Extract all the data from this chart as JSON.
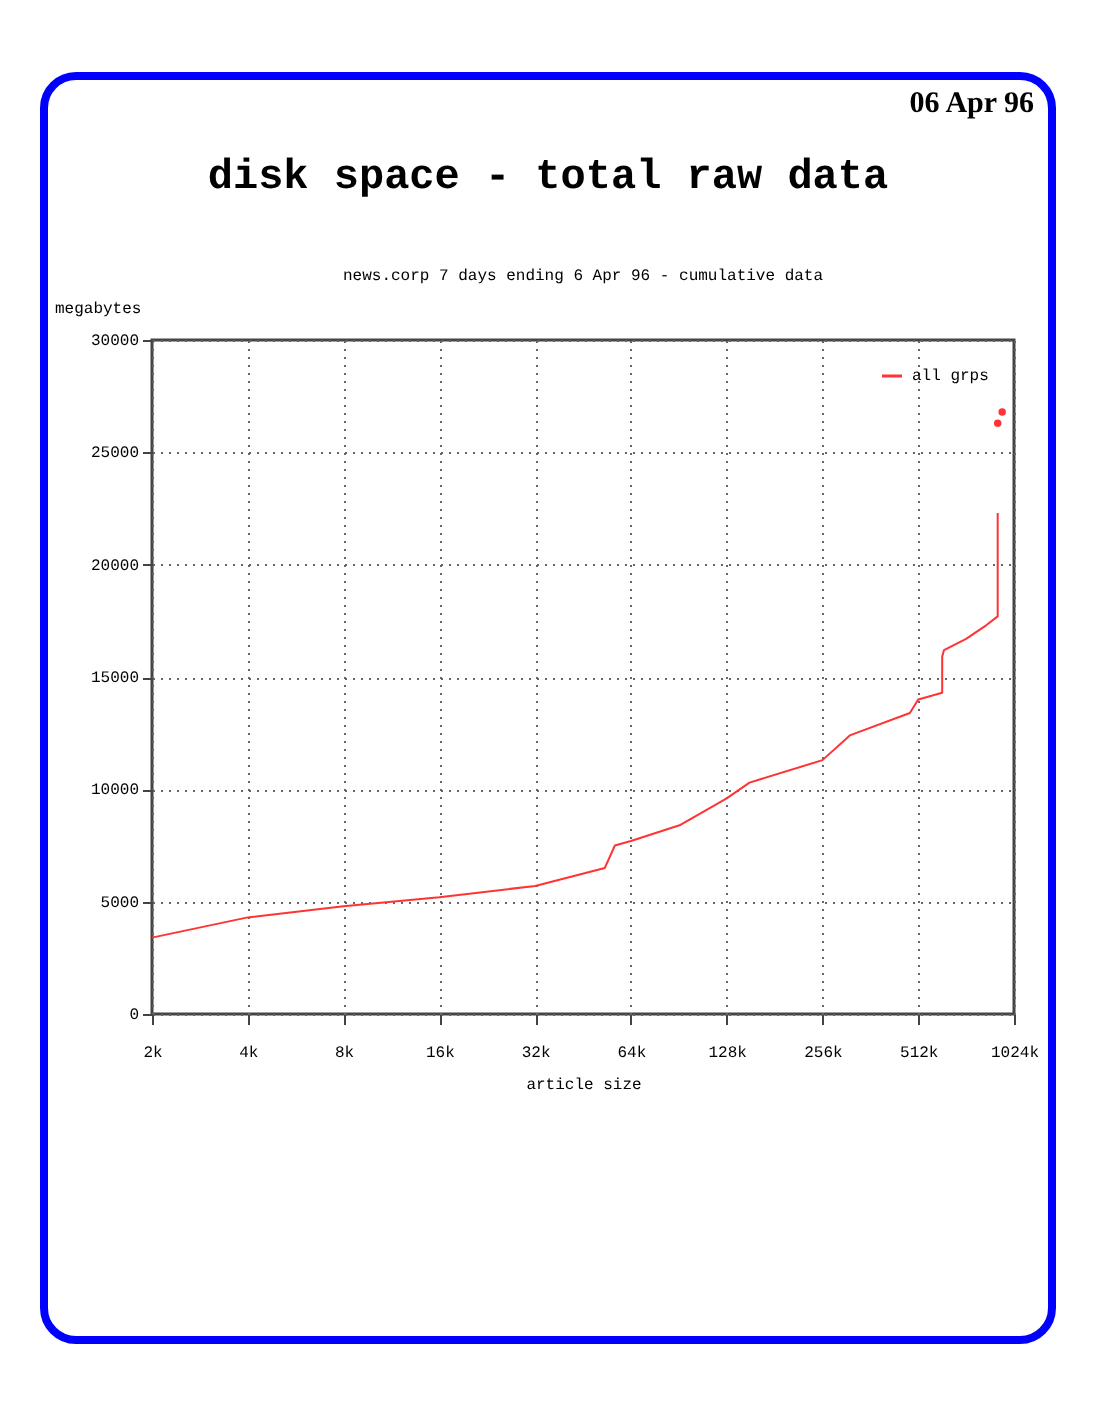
{
  "chart_data": {
    "type": "line",
    "title": "disk space - total raw data",
    "subtitle": "news.corp 7 days ending 6 Apr 96 - cumulative data",
    "xlabel": "article size",
    "ylabel": "megabytes",
    "annotations": [
      "06 Apr 96"
    ],
    "log": "x",
    "grid": true,
    "legend": "top right",
    "line_style": "solid",
    "xlim": [
      2,
      1024
    ],
    "xticks": [
      {
        "value": 2,
        "label": "2k"
      },
      {
        "value": 4,
        "label": "4k"
      },
      {
        "value": 8,
        "label": "8k"
      },
      {
        "value": 16,
        "label": "16k"
      },
      {
        "value": 32,
        "label": "32k"
      },
      {
        "value": 64,
        "label": "64k"
      },
      {
        "value": 128,
        "label": "128k"
      },
      {
        "value": 256,
        "label": "256k"
      },
      {
        "value": 512,
        "label": "512k"
      },
      {
        "value": 1024,
        "label": "1024k"
      }
    ],
    "ylim": [
      0,
      30000
    ],
    "yticks": [
      0,
      5000,
      10000,
      15000,
      20000,
      25000,
      30000
    ],
    "series": [
      {
        "name": "all grps",
        "color": "#ff3333",
        "x": [
          2,
          4,
          8,
          16,
          32,
          53,
          57,
          64,
          91,
          128,
          151,
          256,
          312,
          482,
          512,
          609,
          609,
          617,
          724,
          837,
          910,
          910,
          910
        ],
        "values": [
          3400,
          4300,
          4800,
          5200,
          5700,
          6500,
          7500,
          7700,
          8400,
          9600,
          10300,
          11300,
          12400,
          13400,
          14000,
          14300,
          15900,
          16200,
          16700,
          17300,
          17700,
          18300,
          22300
        ]
      },
      {
        "type": "scatter",
        "color": "#ff3333",
        "x": [
          910,
          940
        ],
        "values": [
          26300,
          26800
        ]
      }
    ]
  }
}
